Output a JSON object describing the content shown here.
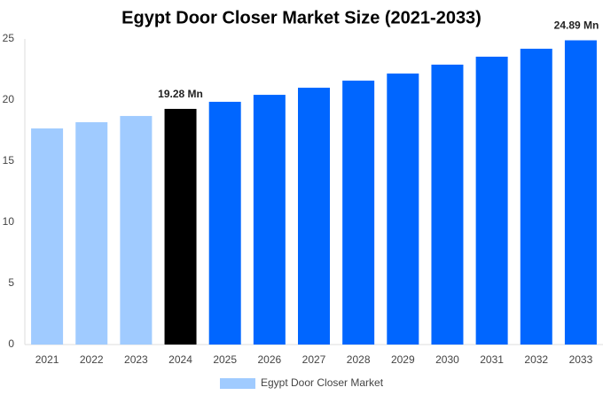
{
  "chart_data": {
    "type": "bar",
    "title": "Egypt Door Closer Market Size (2021-2033)",
    "categories": [
      "2021",
      "2022",
      "2023",
      "2024",
      "2025",
      "2026",
      "2027",
      "2028",
      "2029",
      "2030",
      "2031",
      "2032",
      "2033"
    ],
    "series": [
      {
        "name": "Egypt Door Closer Market",
        "color": "#a0cbff",
        "colors": [
          "#a0cbff",
          "#a0cbff",
          "#a0cbff",
          "#000000",
          "#0066ff",
          "#0066ff",
          "#0066ff",
          "#0066ff",
          "#0066ff",
          "#0066ff",
          "#0066ff",
          "#0066ff",
          "#0066ff"
        ],
        "values": [
          17.68,
          18.19,
          18.7,
          19.28,
          19.86,
          20.43,
          21.01,
          21.59,
          22.17,
          22.9,
          23.55,
          24.2,
          24.89
        ],
        "value_labels": [
          null,
          null,
          null,
          "19.28 Mn",
          null,
          null,
          null,
          null,
          null,
          null,
          null,
          null,
          "24.89 Mn"
        ]
      }
    ],
    "ylim": [
      0,
      25
    ],
    "yticks": [
      0,
      5,
      10,
      15,
      20,
      25
    ],
    "grid": false
  }
}
